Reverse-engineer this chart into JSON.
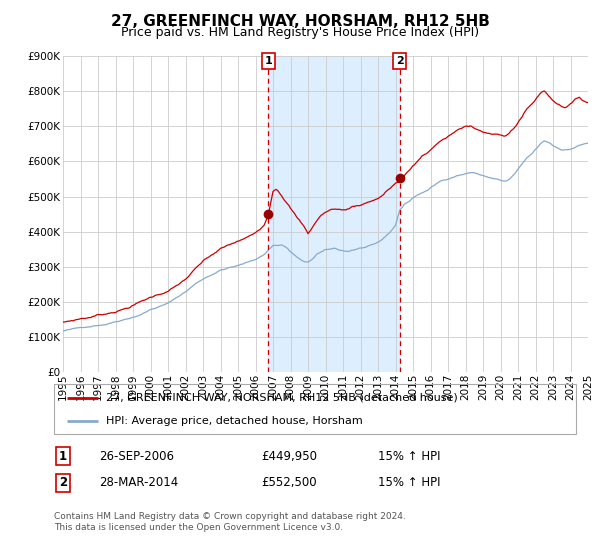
{
  "title": "27, GREENFINCH WAY, HORSHAM, RH12 5HB",
  "subtitle": "Price paid vs. HM Land Registry's House Price Index (HPI)",
  "ylim": [
    0,
    900000
  ],
  "xlim": [
    1995,
    2025
  ],
  "yticks": [
    0,
    100000,
    200000,
    300000,
    400000,
    500000,
    600000,
    700000,
    800000,
    900000
  ],
  "ytick_labels": [
    "£0",
    "£100K",
    "£200K",
    "£300K",
    "£400K",
    "£500K",
    "£600K",
    "£700K",
    "£800K",
    "£900K"
  ],
  "xticks": [
    1995,
    1996,
    1997,
    1998,
    1999,
    2000,
    2001,
    2002,
    2003,
    2004,
    2005,
    2006,
    2007,
    2008,
    2009,
    2010,
    2011,
    2012,
    2013,
    2014,
    2015,
    2016,
    2017,
    2018,
    2019,
    2020,
    2021,
    2022,
    2023,
    2024,
    2025
  ],
  "transaction1_x": 2006.73,
  "transaction1_y": 449950,
  "transaction2_x": 2014.24,
  "transaction2_y": 552500,
  "shaded_color": "#ddeeff",
  "line1_color": "#cc0000",
  "line2_color": "#88aacc",
  "marker_color": "#990000",
  "dashed_line_color": "#cc0000",
  "grid_color": "#cccccc",
  "background_color": "#ffffff",
  "legend_label1": "27, GREENFINCH WAY, HORSHAM, RH12 5HB (detached house)",
  "legend_label2": "HPI: Average price, detached house, Horsham",
  "table_row1": [
    "1",
    "26-SEP-2006",
    "£449,950",
    "15% ↑ HPI"
  ],
  "table_row2": [
    "2",
    "28-MAR-2014",
    "£552,500",
    "15% ↑ HPI"
  ],
  "footer_text": "Contains HM Land Registry data © Crown copyright and database right 2024.\nThis data is licensed under the Open Government Licence v3.0.",
  "title_fontsize": 11,
  "subtitle_fontsize": 9,
  "tick_fontsize": 7.5,
  "legend_fontsize": 8,
  "table_fontsize": 8.5,
  "footer_fontsize": 6.5
}
